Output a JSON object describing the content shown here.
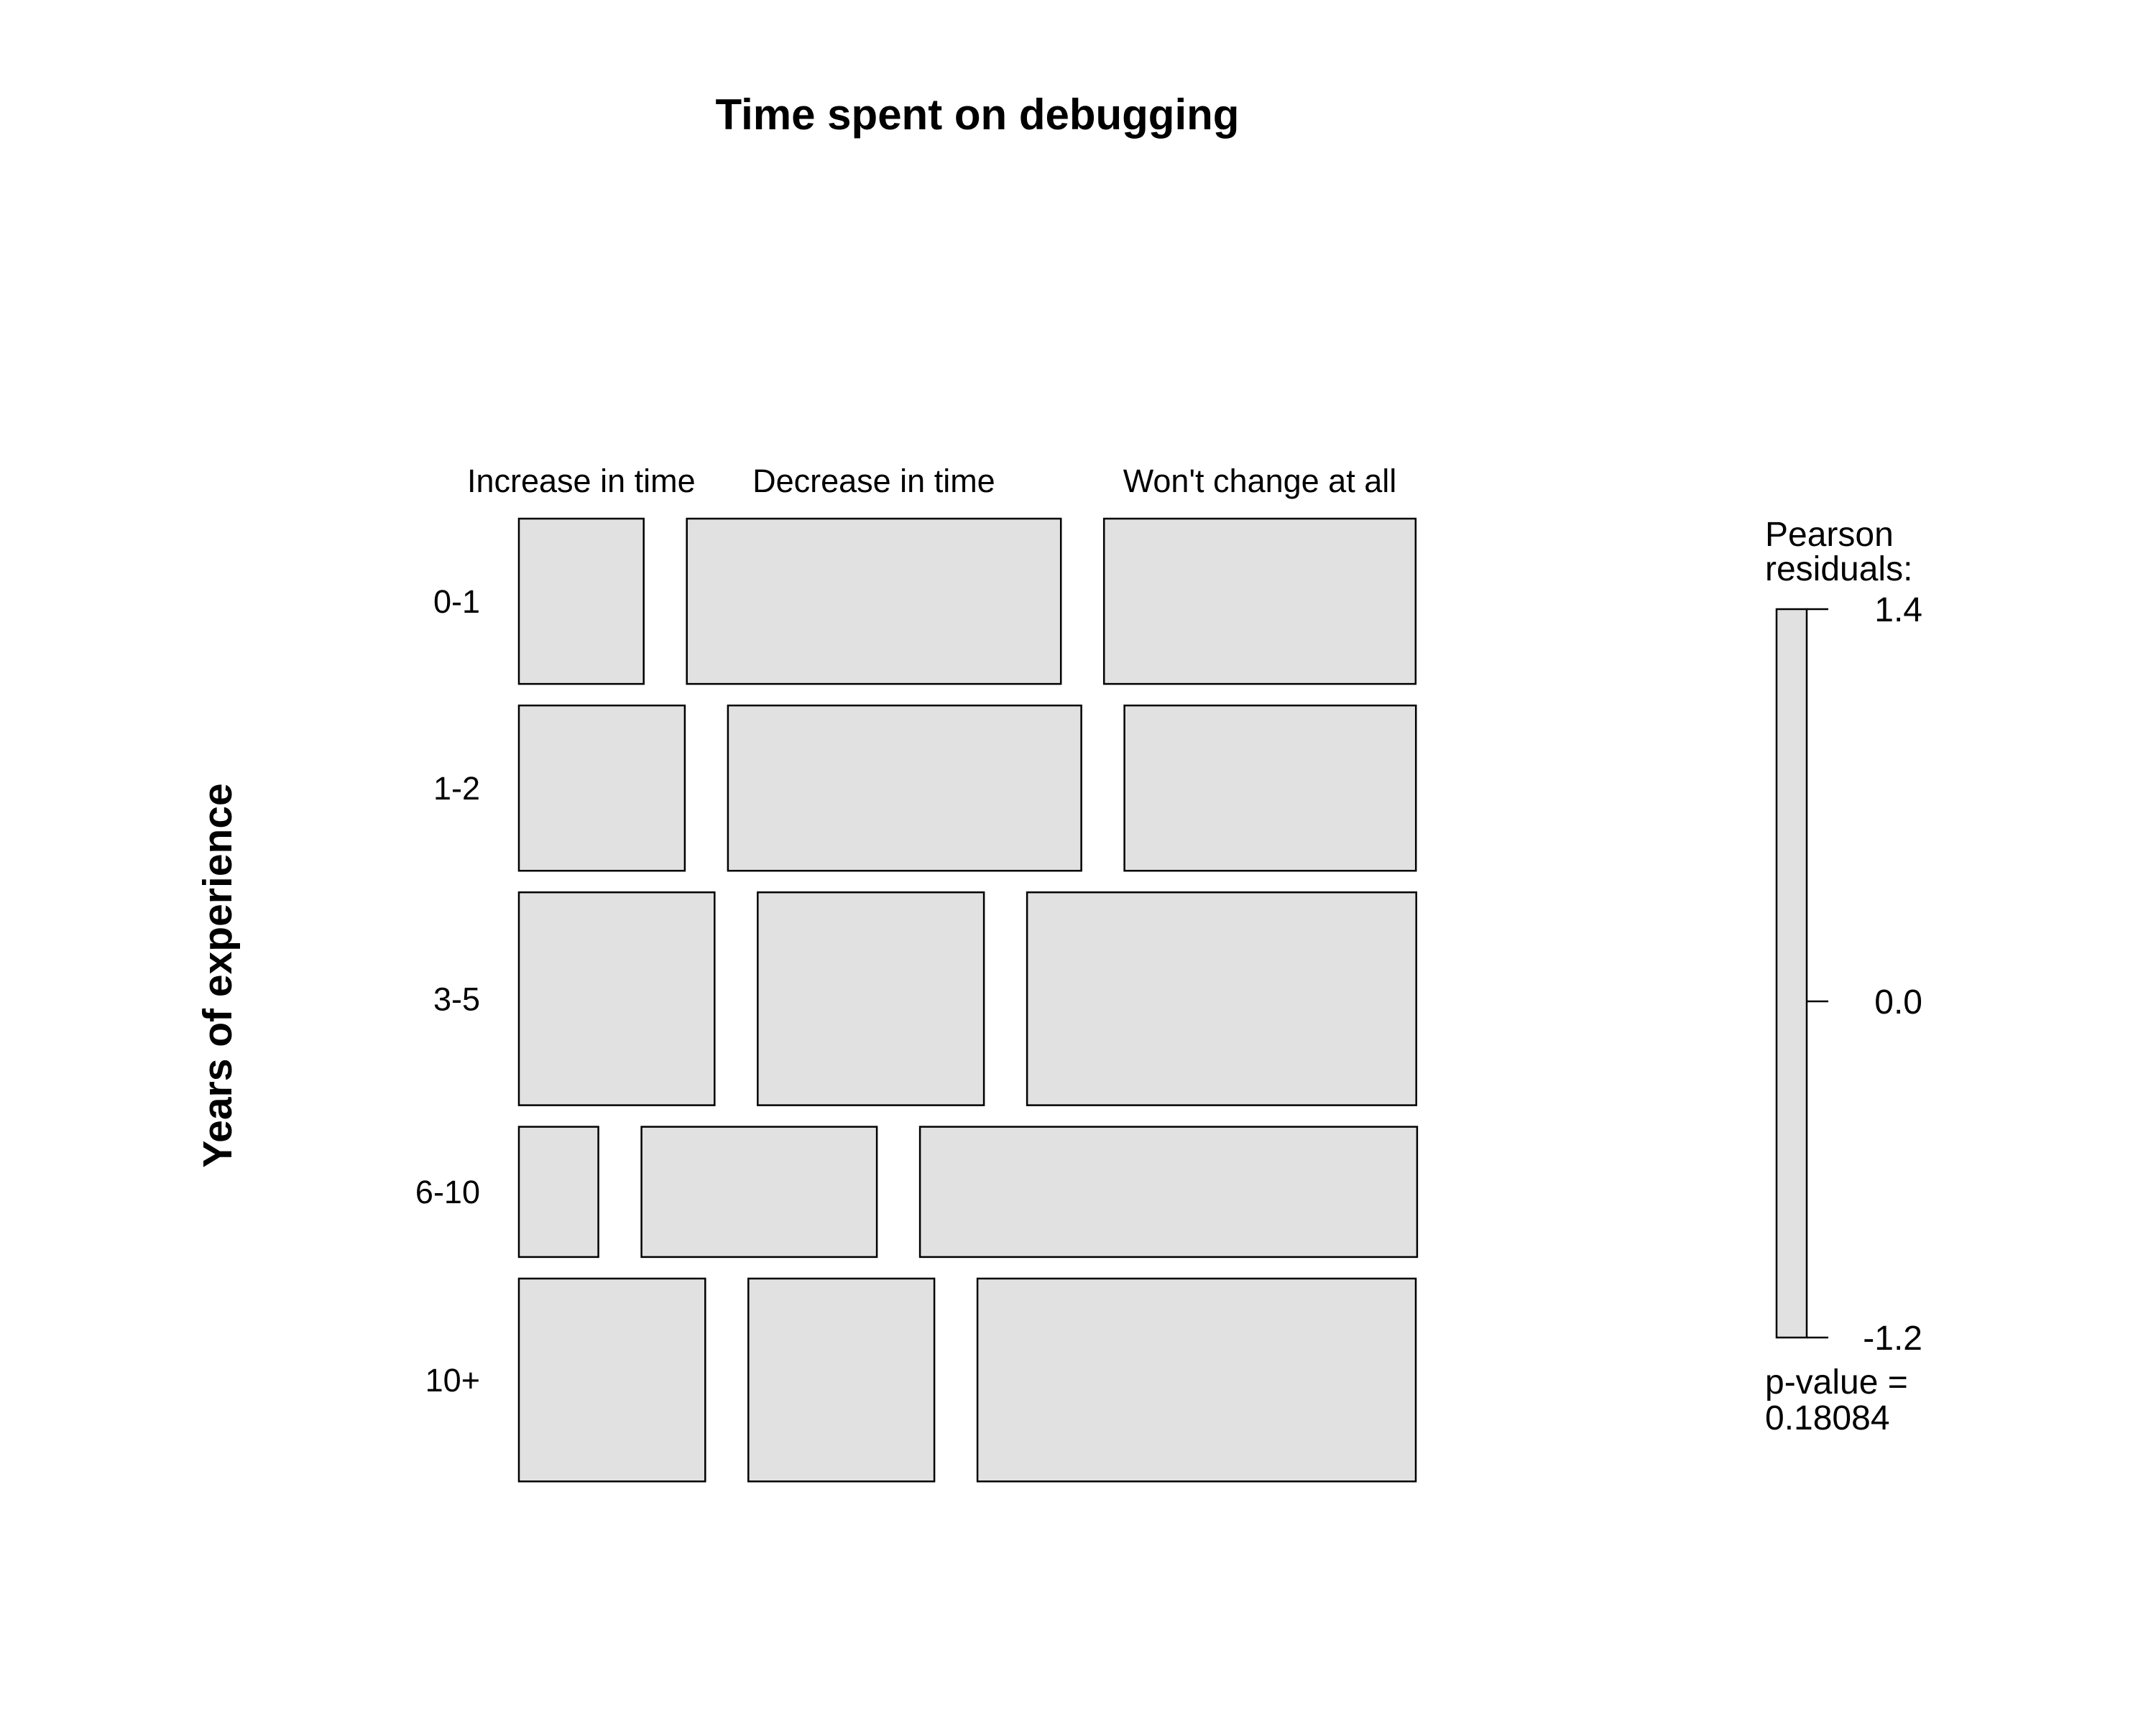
{
  "chart_data": {
    "type": "mosaic",
    "title": "Time spent on debugging",
    "ylabel": "Years of experience",
    "columns": [
      "Increase in time",
      "Decrease in time",
      "Won't change at all"
    ],
    "rows": [
      "0-1",
      "1-2",
      "3-5",
      "6-10",
      "10+"
    ],
    "row_proportions": [
      0.2006,
      0.2006,
      0.2584,
      0.1581,
      0.2462
    ],
    "cell_proportions": [
      [
        0.1513,
        0.4534,
        0.3777
      ],
      [
        0.2011,
        0.4283,
        0.3533
      ],
      [
        0.2372,
        0.2742,
        0.4718
      ],
      [
        0.0963,
        0.2853,
        0.6026
      ],
      [
        0.2259,
        0.2254,
        0.5313
      ]
    ],
    "legend": {
      "title": "Pearson residuals:",
      "title_lines": [
        "Pearson",
        "residuals:"
      ],
      "max": 1.4,
      "mid": 0.0,
      "min": -1.2,
      "tick_labels": [
        "1.4",
        "0.0",
        "-1.2"
      ],
      "fill_color": "#e1e1e1"
    },
    "p_value_label": "p-value =",
    "p_value": "0.18084"
  }
}
